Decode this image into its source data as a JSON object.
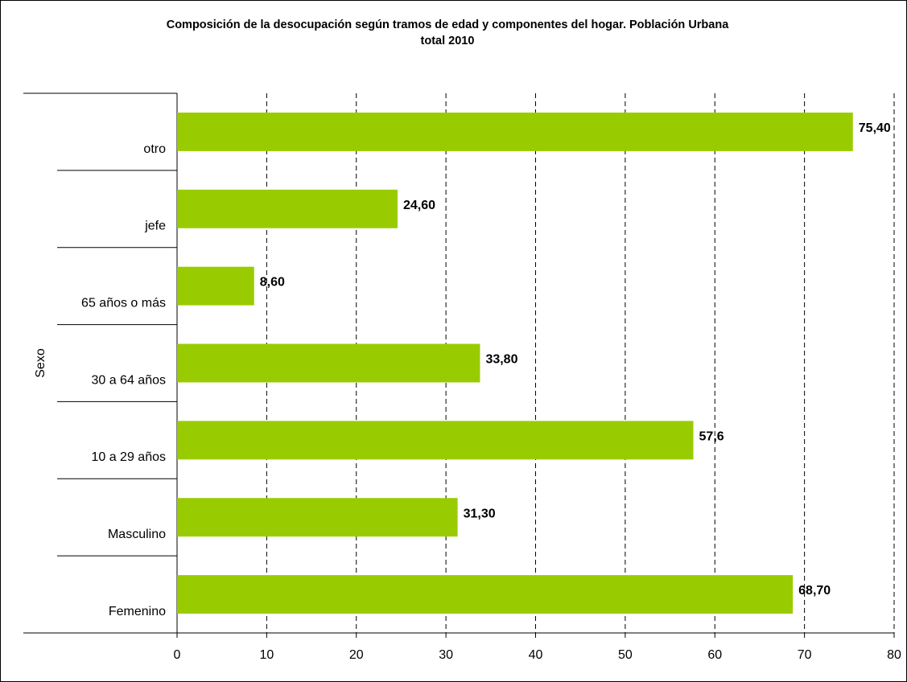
{
  "chart_data": {
    "type": "bar",
    "orientation": "horizontal",
    "title_line1": "Composición de la desocupación según tramos de edad y componentes del hogar. Población Urbana",
    "title_line2": "total 2010",
    "ylabel": "Sexo",
    "xlabel": "",
    "xlim": [
      0,
      80
    ],
    "x_ticks": [
      "0",
      "10",
      "20",
      "30",
      "40",
      "50",
      "60",
      "70",
      "80"
    ],
    "grid": "vertical dashed",
    "legend": "none",
    "bar_color": "#99cc00",
    "categories": [
      "otro",
      "jefe",
      "65 años o más",
      "30 a 64 años",
      "10 a 29 años",
      "Masculino",
      "Femenino"
    ],
    "values": [
      75.4,
      24.6,
      8.6,
      33.8,
      57.6,
      31.3,
      68.7
    ],
    "data_labels": [
      "75,40",
      "24,60",
      "8,60",
      "33,80",
      "57,6",
      "31,30",
      "68,70"
    ]
  }
}
